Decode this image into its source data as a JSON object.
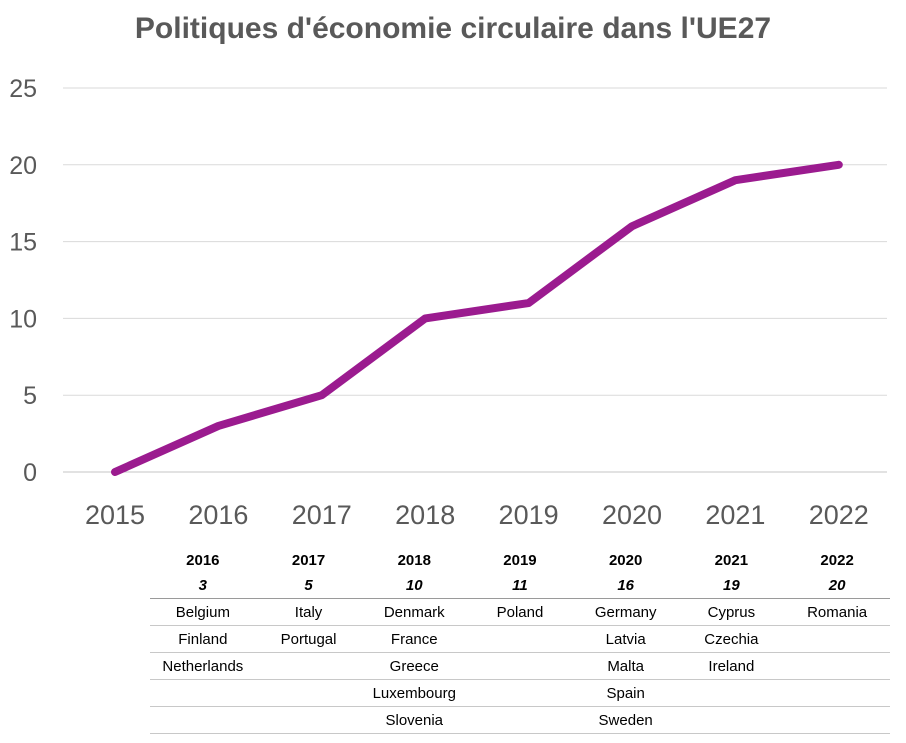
{
  "chart_data": {
    "type": "line",
    "title": "Politiques d'économie circulaire dans l'UE27",
    "x": [
      "2015",
      "2016",
      "2017",
      "2018",
      "2019",
      "2020",
      "2021",
      "2022"
    ],
    "y_ticks": [
      "0",
      "5",
      "10",
      "15",
      "20",
      "25"
    ],
    "ylim": [
      0,
      25
    ],
    "series": [
      {
        "values": [
          0,
          3,
          5,
          10,
          11,
          16,
          19,
          20
        ],
        "color": "#9B1B8F"
      }
    ],
    "grid": true
  },
  "table": {
    "headers": [
      "2016",
      "2017",
      "2018",
      "2019",
      "2020",
      "2021",
      "2022"
    ],
    "counts": [
      "3",
      "5",
      "10",
      "11",
      "16",
      "19",
      "20"
    ],
    "rows": [
      [
        "Belgium",
        "Italy",
        "Denmark",
        "Poland",
        "Germany",
        "Cyprus",
        "Romania"
      ],
      [
        "Finland",
        "Portugal",
        "France",
        "",
        "Latvia",
        "Czechia",
        ""
      ],
      [
        "Netherlands",
        "",
        "Greece",
        "",
        "Malta",
        "Ireland",
        ""
      ],
      [
        "",
        "",
        "Luxembourg",
        "",
        "Spain",
        "",
        ""
      ],
      [
        "",
        "",
        "Slovenia",
        "",
        "Sweden",
        "",
        ""
      ]
    ]
  }
}
